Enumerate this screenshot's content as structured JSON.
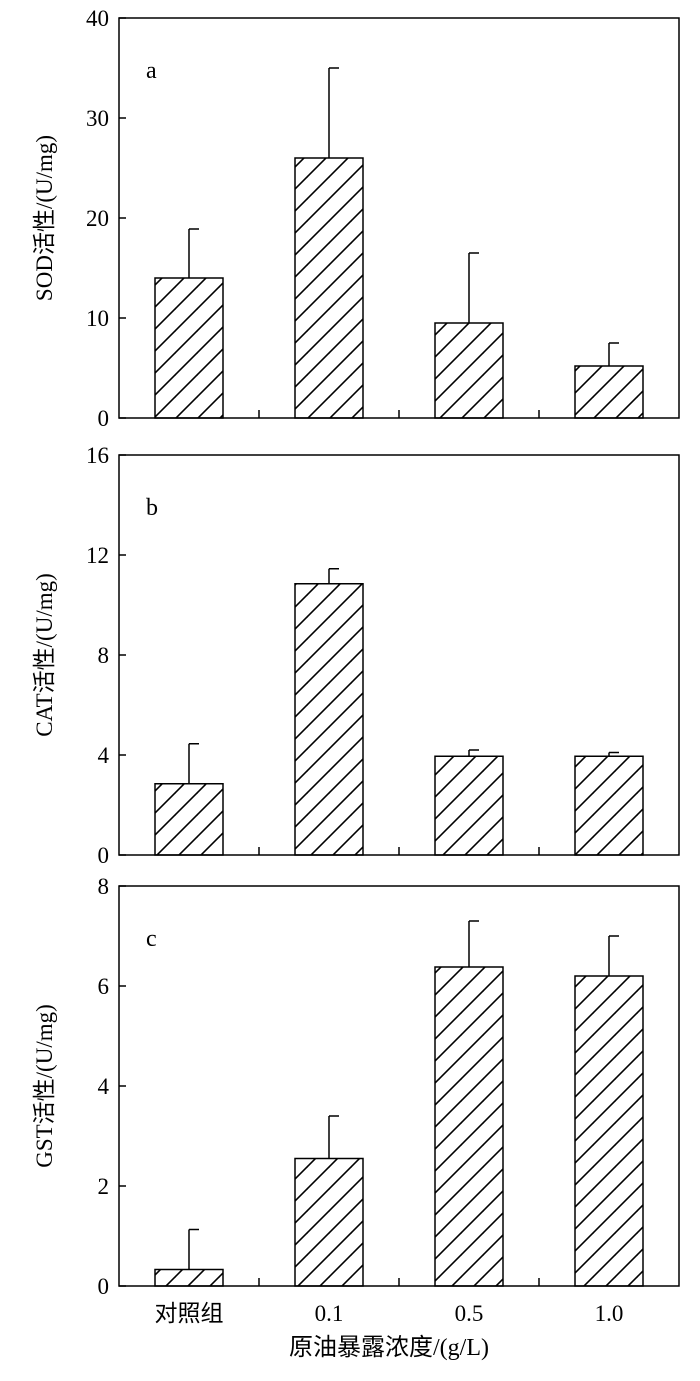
{
  "x_axis_title": "原油暴露浓度/(g/L)",
  "chart_data": [
    {
      "type": "bar",
      "panel_label": "a",
      "ylabel": "SOD活性/(U/mg)",
      "categories": [
        "对照组",
        "0.1",
        "0.5",
        "1.0"
      ],
      "values": [
        14.0,
        26.0,
        9.5,
        5.2
      ],
      "errors": [
        4.9,
        9.0,
        7.0,
        2.3
      ],
      "ylim": [
        0,
        40
      ],
      "yticks": [
        0,
        10,
        20,
        30,
        40
      ],
      "show_x_tick_labels": false
    },
    {
      "type": "bar",
      "panel_label": "b",
      "ylabel": "CAT活性/(U/mg)",
      "categories": [
        "对照组",
        "0.1",
        "0.5",
        "1.0"
      ],
      "values": [
        2.85,
        10.85,
        3.95,
        3.95
      ],
      "errors": [
        1.6,
        0.6,
        0.25,
        0.15
      ],
      "ylim": [
        0,
        16
      ],
      "yticks": [
        0,
        4,
        8,
        12,
        16
      ],
      "show_x_tick_labels": false
    },
    {
      "type": "bar",
      "panel_label": "c",
      "ylabel": "GST活性/(U/mg)",
      "categories": [
        "对照组",
        "0.1",
        "0.5",
        "1.0"
      ],
      "values": [
        0.33,
        2.55,
        6.38,
        6.2
      ],
      "errors": [
        0.8,
        0.85,
        0.92,
        0.8
      ],
      "ylim": [
        0,
        8
      ],
      "yticks": [
        0,
        2,
        4,
        6,
        8
      ],
      "show_x_tick_labels": true
    }
  ],
  "style": {
    "bar_fill": "#ffffff",
    "hatch_color": "#000000",
    "axis_color": "#000000"
  }
}
